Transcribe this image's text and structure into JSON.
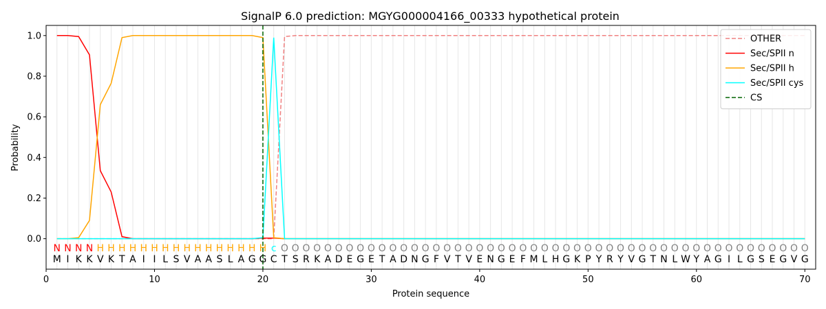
{
  "chart_data": {
    "type": "line",
    "title": "SignalP 6.0 prediction: MGYG000004166_00333 hypothetical protein",
    "xlabel": "Protein sequence",
    "ylabel": "Probability",
    "xlim": [
      0,
      71
    ],
    "ylim": [
      -0.15,
      1.05
    ],
    "x_ticks": [
      0,
      10,
      20,
      30,
      40,
      50,
      60,
      70
    ],
    "y_ticks": [
      0.0,
      0.2,
      0.4,
      0.6,
      0.8,
      1.0
    ],
    "y_tick_labels": [
      "0.0",
      "0.2",
      "0.4",
      "0.6",
      "0.8",
      "1.0"
    ],
    "grid": "vertical lines at each residue",
    "legend_position": "top-right",
    "sequence": [
      "M",
      "I",
      "K",
      "K",
      "V",
      "K",
      "T",
      "A",
      "I",
      "I",
      "L",
      "S",
      "V",
      "A",
      "A",
      "S",
      "L",
      "A",
      "G",
      "G",
      "C",
      "T",
      "S",
      "R",
      "K",
      "A",
      "D",
      "E",
      "G",
      "E",
      "T",
      "A",
      "D",
      "N",
      "G",
      "F",
      "V",
      "T",
      "V",
      "E",
      "N",
      "G",
      "E",
      "F",
      "M",
      "L",
      "H",
      "G",
      "K",
      "P",
      "Y",
      "R",
      "Y",
      "V",
      "G",
      "T",
      "N",
      "L",
      "W",
      "Y",
      "A",
      "G",
      "I",
      "L",
      "G",
      "S",
      "E",
      "G",
      "V",
      "G"
    ],
    "region_labels": [
      "N",
      "N",
      "N",
      "N",
      "H",
      "H",
      "H",
      "H",
      "H",
      "H",
      "H",
      "H",
      "H",
      "H",
      "H",
      "H",
      "H",
      "H",
      "H",
      "H",
      "c",
      "O",
      "O",
      "O",
      "O",
      "O",
      "O",
      "O",
      "O",
      "O",
      "O",
      "O",
      "O",
      "O",
      "O",
      "O",
      "O",
      "O",
      "O",
      "O",
      "O",
      "O",
      "O",
      "O",
      "O",
      "O",
      "O",
      "O",
      "O",
      "O",
      "O",
      "O",
      "O",
      "O",
      "O",
      "O",
      "O",
      "O",
      "O",
      "O",
      "O",
      "O",
      "O",
      "O",
      "O",
      "O",
      "O",
      "O",
      "O",
      "O"
    ],
    "region_colors": {
      "N": "#ff0000",
      "H": "#ffa500",
      "c": "#00ffff",
      "O": "#808080"
    },
    "series": [
      {
        "name": "OTHER",
        "color": "#f08080",
        "dash": "dashed",
        "values": [
          0,
          0,
          0,
          0,
          0,
          0,
          0,
          0,
          0,
          0,
          0,
          0,
          0,
          0,
          0,
          0,
          0,
          0,
          0,
          0,
          0,
          0.995,
          1,
          1,
          1,
          1,
          1,
          1,
          1,
          1,
          1,
          1,
          1,
          1,
          1,
          1,
          1,
          1,
          1,
          1,
          1,
          1,
          1,
          1,
          1,
          1,
          1,
          1,
          1,
          1,
          1,
          1,
          1,
          1,
          1,
          1,
          1,
          1,
          1,
          1,
          1,
          1,
          1,
          1,
          1,
          1,
          1,
          1,
          1,
          1
        ]
      },
      {
        "name": "Sec/SPII n",
        "color": "#ff0000",
        "dash": "solid",
        "values": [
          1,
          1,
          0.995,
          0.905,
          0.335,
          0.23,
          0.01,
          0,
          0,
          0,
          0,
          0,
          0,
          0,
          0,
          0,
          0,
          0,
          0,
          0.003,
          0.003,
          0,
          0,
          0,
          0,
          0,
          0,
          0,
          0,
          0,
          0,
          0,
          0,
          0,
          0,
          0,
          0,
          0,
          0,
          0,
          0,
          0,
          0,
          0,
          0,
          0,
          0,
          0,
          0,
          0,
          0,
          0,
          0,
          0,
          0,
          0,
          0,
          0,
          0,
          0,
          0,
          0,
          0,
          0,
          0,
          0,
          0,
          0,
          0,
          0
        ]
      },
      {
        "name": "Sec/SPII h",
        "color": "#ffa500",
        "dash": "solid",
        "values": [
          0,
          0,
          0.005,
          0.09,
          0.66,
          0.765,
          0.99,
          1,
          1,
          1,
          1,
          1,
          1,
          1,
          1,
          1,
          1,
          1,
          1,
          0.99,
          0.005,
          0,
          0,
          0,
          0,
          0,
          0,
          0,
          0,
          0,
          0,
          0,
          0,
          0,
          0,
          0,
          0,
          0,
          0,
          0,
          0,
          0,
          0,
          0,
          0,
          0,
          0,
          0,
          0,
          0,
          0,
          0,
          0,
          0,
          0,
          0,
          0,
          0,
          0,
          0,
          0,
          0,
          0,
          0,
          0,
          0,
          0,
          0,
          0,
          0
        ]
      },
      {
        "name": "Sec/SPII cys",
        "color": "#00ffff",
        "dash": "solid",
        "values": [
          0,
          0,
          0,
          0,
          0,
          0,
          0,
          0,
          0,
          0,
          0,
          0,
          0,
          0,
          0,
          0,
          0,
          0,
          0,
          0.005,
          0.99,
          0,
          0,
          0,
          0,
          0,
          0,
          0,
          0,
          0,
          0,
          0,
          0,
          0,
          0,
          0,
          0,
          0,
          0,
          0,
          0,
          0,
          0,
          0,
          0,
          0,
          0,
          0,
          0,
          0,
          0,
          0,
          0,
          0,
          0,
          0,
          0,
          0,
          0,
          0,
          0,
          0,
          0,
          0,
          0,
          0,
          0,
          0,
          0,
          0
        ]
      }
    ],
    "cs": {
      "name": "CS",
      "color": "#006400",
      "dash": "dashed",
      "x": 20
    }
  }
}
